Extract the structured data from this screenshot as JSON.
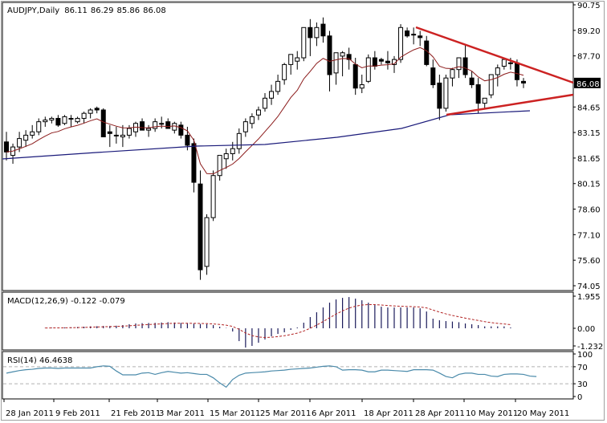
{
  "chart_data": [
    {
      "type": "candlestick",
      "title": "AUDJPY,Daily",
      "symbol": "AUDJPY",
      "timeframe": "Daily",
      "ohlc_header": {
        "open": "86.11",
        "high": "86.29",
        "low": "85.86",
        "close": "86.08"
      },
      "last_price": "86.08",
      "y_ticks": [
        "90.75",
        "89.20",
        "87.70",
        "86.08",
        "84.65",
        "83.15",
        "81.65",
        "80.15",
        "78.60",
        "77.10",
        "75.60",
        "74.05"
      ],
      "ylim": [
        74.05,
        90.75
      ],
      "x_ticks": [
        "28 Jan 2011",
        "9 Feb 2011",
        "21 Feb 2011",
        "3 Mar 2011",
        "15 Mar 2011",
        "25 Mar 2011",
        "6 Apr 2011",
        "18 Apr 2011",
        "28 Apr 2011",
        "10 May 2011",
        "20 May 2011"
      ],
      "candles": [
        [
          82.6,
          83.2,
          81.5,
          82.0
        ],
        [
          81.8,
          82.5,
          81.3,
          82.3
        ],
        [
          82.3,
          83.2,
          82.0,
          82.8
        ],
        [
          82.7,
          83.3,
          82.3,
          83.0
        ],
        [
          83.0,
          83.6,
          82.8,
          83.2
        ],
        [
          83.2,
          84.0,
          83.0,
          83.8
        ],
        [
          83.8,
          84.1,
          83.5,
          83.9
        ],
        [
          83.9,
          84.1,
          83.7,
          84.0
        ],
        [
          84.0,
          84.2,
          83.5,
          83.6
        ],
        [
          83.7,
          84.2,
          83.6,
          84.1
        ],
        [
          84.0,
          84.2,
          83.5,
          84.0
        ],
        [
          83.8,
          84.1,
          83.7,
          84.0
        ],
        [
          84.0,
          84.4,
          83.7,
          84.3
        ],
        [
          84.3,
          84.6,
          84.0,
          84.5
        ],
        [
          84.6,
          84.7,
          84.3,
          84.5
        ],
        [
          84.5,
          84.6,
          83.4,
          82.9
        ],
        [
          83.2,
          83.6,
          82.3,
          83.1
        ],
        [
          83.0,
          83.5,
          82.5,
          83.0
        ],
        [
          82.9,
          83.6,
          82.3,
          83.0
        ],
        [
          83.0,
          83.6,
          82.8,
          83.4
        ],
        [
          83.2,
          83.8,
          82.9,
          83.7
        ],
        [
          83.8,
          84.0,
          83.5,
          83.3
        ],
        [
          83.3,
          83.6,
          82.9,
          83.4
        ],
        [
          83.4,
          84.0,
          83.2,
          83.8
        ],
        [
          83.7,
          84.1,
          83.4,
          83.7
        ],
        [
          83.8,
          84.0,
          83.5,
          83.4
        ],
        [
          83.3,
          83.8,
          83.1,
          83.7
        ],
        [
          83.6,
          83.8,
          82.8,
          83.0
        ],
        [
          83.0,
          83.5,
          82.1,
          82.4
        ],
        [
          82.5,
          82.8,
          79.6,
          80.2
        ],
        [
          80.1,
          80.9,
          74.4,
          75.0
        ],
        [
          75.2,
          78.3,
          74.7,
          78.1
        ],
        [
          78.1,
          80.9,
          77.9,
          80.6
        ],
        [
          80.6,
          81.8,
          80.3,
          81.8
        ],
        [
          81.6,
          82.2,
          81.0,
          81.9
        ],
        [
          81.9,
          82.6,
          81.5,
          82.2
        ],
        [
          82.2,
          83.4,
          81.9,
          83.1
        ],
        [
          83.2,
          84.0,
          82.9,
          83.8
        ],
        [
          83.7,
          84.3,
          83.4,
          84.1
        ],
        [
          84.2,
          84.7,
          83.9,
          84.5
        ],
        [
          84.6,
          85.5,
          84.4,
          85.2
        ],
        [
          85.2,
          86.0,
          84.8,
          85.6
        ],
        [
          85.6,
          86.6,
          85.4,
          86.2
        ],
        [
          86.3,
          87.3,
          86.0,
          87.2
        ],
        [
          87.2,
          87.8,
          86.6,
          87.8
        ],
        [
          87.4,
          88.0,
          86.9,
          87.6
        ],
        [
          87.6,
          89.4,
          87.4,
          89.4
        ],
        [
          89.4,
          89.9,
          87.7,
          88.8
        ],
        [
          88.8,
          89.7,
          88.3,
          89.4
        ],
        [
          89.6,
          90.0,
          88.5,
          88.9
        ],
        [
          88.9,
          89.2,
          85.6,
          86.6
        ],
        [
          86.7,
          87.9,
          86.0,
          87.9
        ],
        [
          87.7,
          88.0,
          86.5,
          87.9
        ],
        [
          87.8,
          88.2,
          86.9,
          87.5
        ],
        [
          87.2,
          87.6,
          85.4,
          85.8
        ],
        [
          85.8,
          86.6,
          85.5,
          86.0
        ],
        [
          86.2,
          87.8,
          86.1,
          87.6
        ],
        [
          87.6,
          88.0,
          86.9,
          87.1
        ],
        [
          87.5,
          87.6,
          87.2,
          87.4
        ],
        [
          87.4,
          88.0,
          86.9,
          87.3
        ],
        [
          87.2,
          87.7,
          86.7,
          87.5
        ],
        [
          87.5,
          89.6,
          87.3,
          89.4
        ],
        [
          89.2,
          89.4,
          88.8,
          88.9
        ],
        [
          89.0,
          89.4,
          88.4,
          89.0
        ],
        [
          88.9,
          89.2,
          88.3,
          88.8
        ],
        [
          88.6,
          88.9,
          87.1,
          87.2
        ],
        [
          87.0,
          87.5,
          85.8,
          86.0
        ],
        [
          86.1,
          86.6,
          83.9,
          84.6
        ],
        [
          84.6,
          86.6,
          84.4,
          86.4
        ],
        [
          86.4,
          87.0,
          85.9,
          86.9
        ],
        [
          86.9,
          87.6,
          86.4,
          87.6
        ],
        [
          87.6,
          88.4,
          86.4,
          86.6
        ],
        [
          86.4,
          86.8,
          85.8,
          86.0
        ],
        [
          86.0,
          86.4,
          84.3,
          84.9
        ],
        [
          84.9,
          85.2,
          84.6,
          85.2
        ],
        [
          85.4,
          86.6,
          85.2,
          86.6
        ],
        [
          86.6,
          87.2,
          85.9,
          87.0
        ],
        [
          87.1,
          87.6,
          86.9,
          87.5
        ],
        [
          87.3,
          87.6,
          86.9,
          87.3
        ],
        [
          87.3,
          87.5,
          85.9,
          86.3
        ],
        [
          86.2,
          86.4,
          85.8,
          86.1
        ]
      ],
      "overlays": [
        {
          "name": "MA fast",
          "color": "#8b1a1a"
        },
        {
          "name": "MA slow",
          "color": "#1a1a7a"
        }
      ],
      "trendlines": [
        {
          "name": "upper",
          "color": "#cc2222",
          "from": [
            518,
            34
          ],
          "to": [
            714,
            103
          ]
        },
        {
          "name": "lower",
          "color": "#cc2222",
          "from": [
            556,
            143
          ],
          "to": [
            714,
            118
          ]
        }
      ]
    },
    {
      "type": "bar",
      "title": "MACD(12,26,9) -0.122 -0.079",
      "name": "MACD",
      "params": "12,26,9",
      "values_header": [
        "-0.122",
        "-0.079"
      ],
      "y_ticks": [
        "1.955",
        "0.00",
        "-1.232"
      ],
      "ylim": [
        -1.232,
        1.955
      ],
      "histogram": [
        0.02,
        0.03,
        0.04,
        0.05,
        0.06,
        0.08,
        0.1,
        0.12,
        0.13,
        0.15,
        0.15,
        0.16,
        0.2,
        0.25,
        0.3,
        0.32,
        0.33,
        0.34,
        0.36,
        0.38,
        0.36,
        0.33,
        0.31,
        0.29,
        0.27,
        0.26,
        0.2,
        0.1,
        0.02,
        -0.2,
        -0.8,
        -1.2,
        -1.1,
        -0.9,
        -0.7,
        -0.5,
        -0.35,
        -0.25,
        -0.1,
        0.05,
        0.35,
        0.7,
        1.0,
        1.3,
        1.6,
        1.8,
        1.9,
        1.95,
        1.85,
        1.75,
        1.6,
        1.45,
        1.35,
        1.3,
        1.3,
        1.3,
        1.3,
        1.3,
        1.25,
        1.05,
        0.6,
        0.5,
        0.45,
        0.42,
        0.38,
        0.3,
        0.25,
        0.2,
        0.12,
        0.12,
        0.12,
        0.12,
        0.05
      ],
      "signal_color": "#b22222",
      "hist_color": "#1a1a5a"
    },
    {
      "type": "line",
      "title": "RSI(14) 46.4638",
      "name": "RSI",
      "period": "14",
      "value_header": "46.4638",
      "y_ticks": [
        "100",
        "70",
        "30",
        "0"
      ],
      "ylim": [
        0,
        100
      ],
      "levels": [
        70,
        30
      ],
      "values": [
        55,
        58,
        61,
        63,
        64,
        66,
        67,
        67,
        66,
        67,
        67,
        67,
        67,
        67,
        70,
        72,
        71,
        60,
        51,
        51,
        51,
        55,
        56,
        52,
        56,
        59,
        57,
        55,
        56,
        54,
        52,
        52,
        44,
        32,
        22,
        40,
        50,
        55,
        56,
        57,
        58,
        60,
        61,
        62,
        64,
        65,
        66,
        67,
        69,
        71,
        72,
        70,
        62,
        63,
        63,
        62,
        58,
        58,
        62,
        62,
        61,
        60,
        59,
        63,
        63,
        63,
        62,
        55,
        47,
        44,
        52,
        55,
        55,
        52,
        52,
        48,
        47,
        52,
        53,
        53,
        52,
        48,
        47
      ],
      "line_color": "#4a8aaa"
    }
  ]
}
